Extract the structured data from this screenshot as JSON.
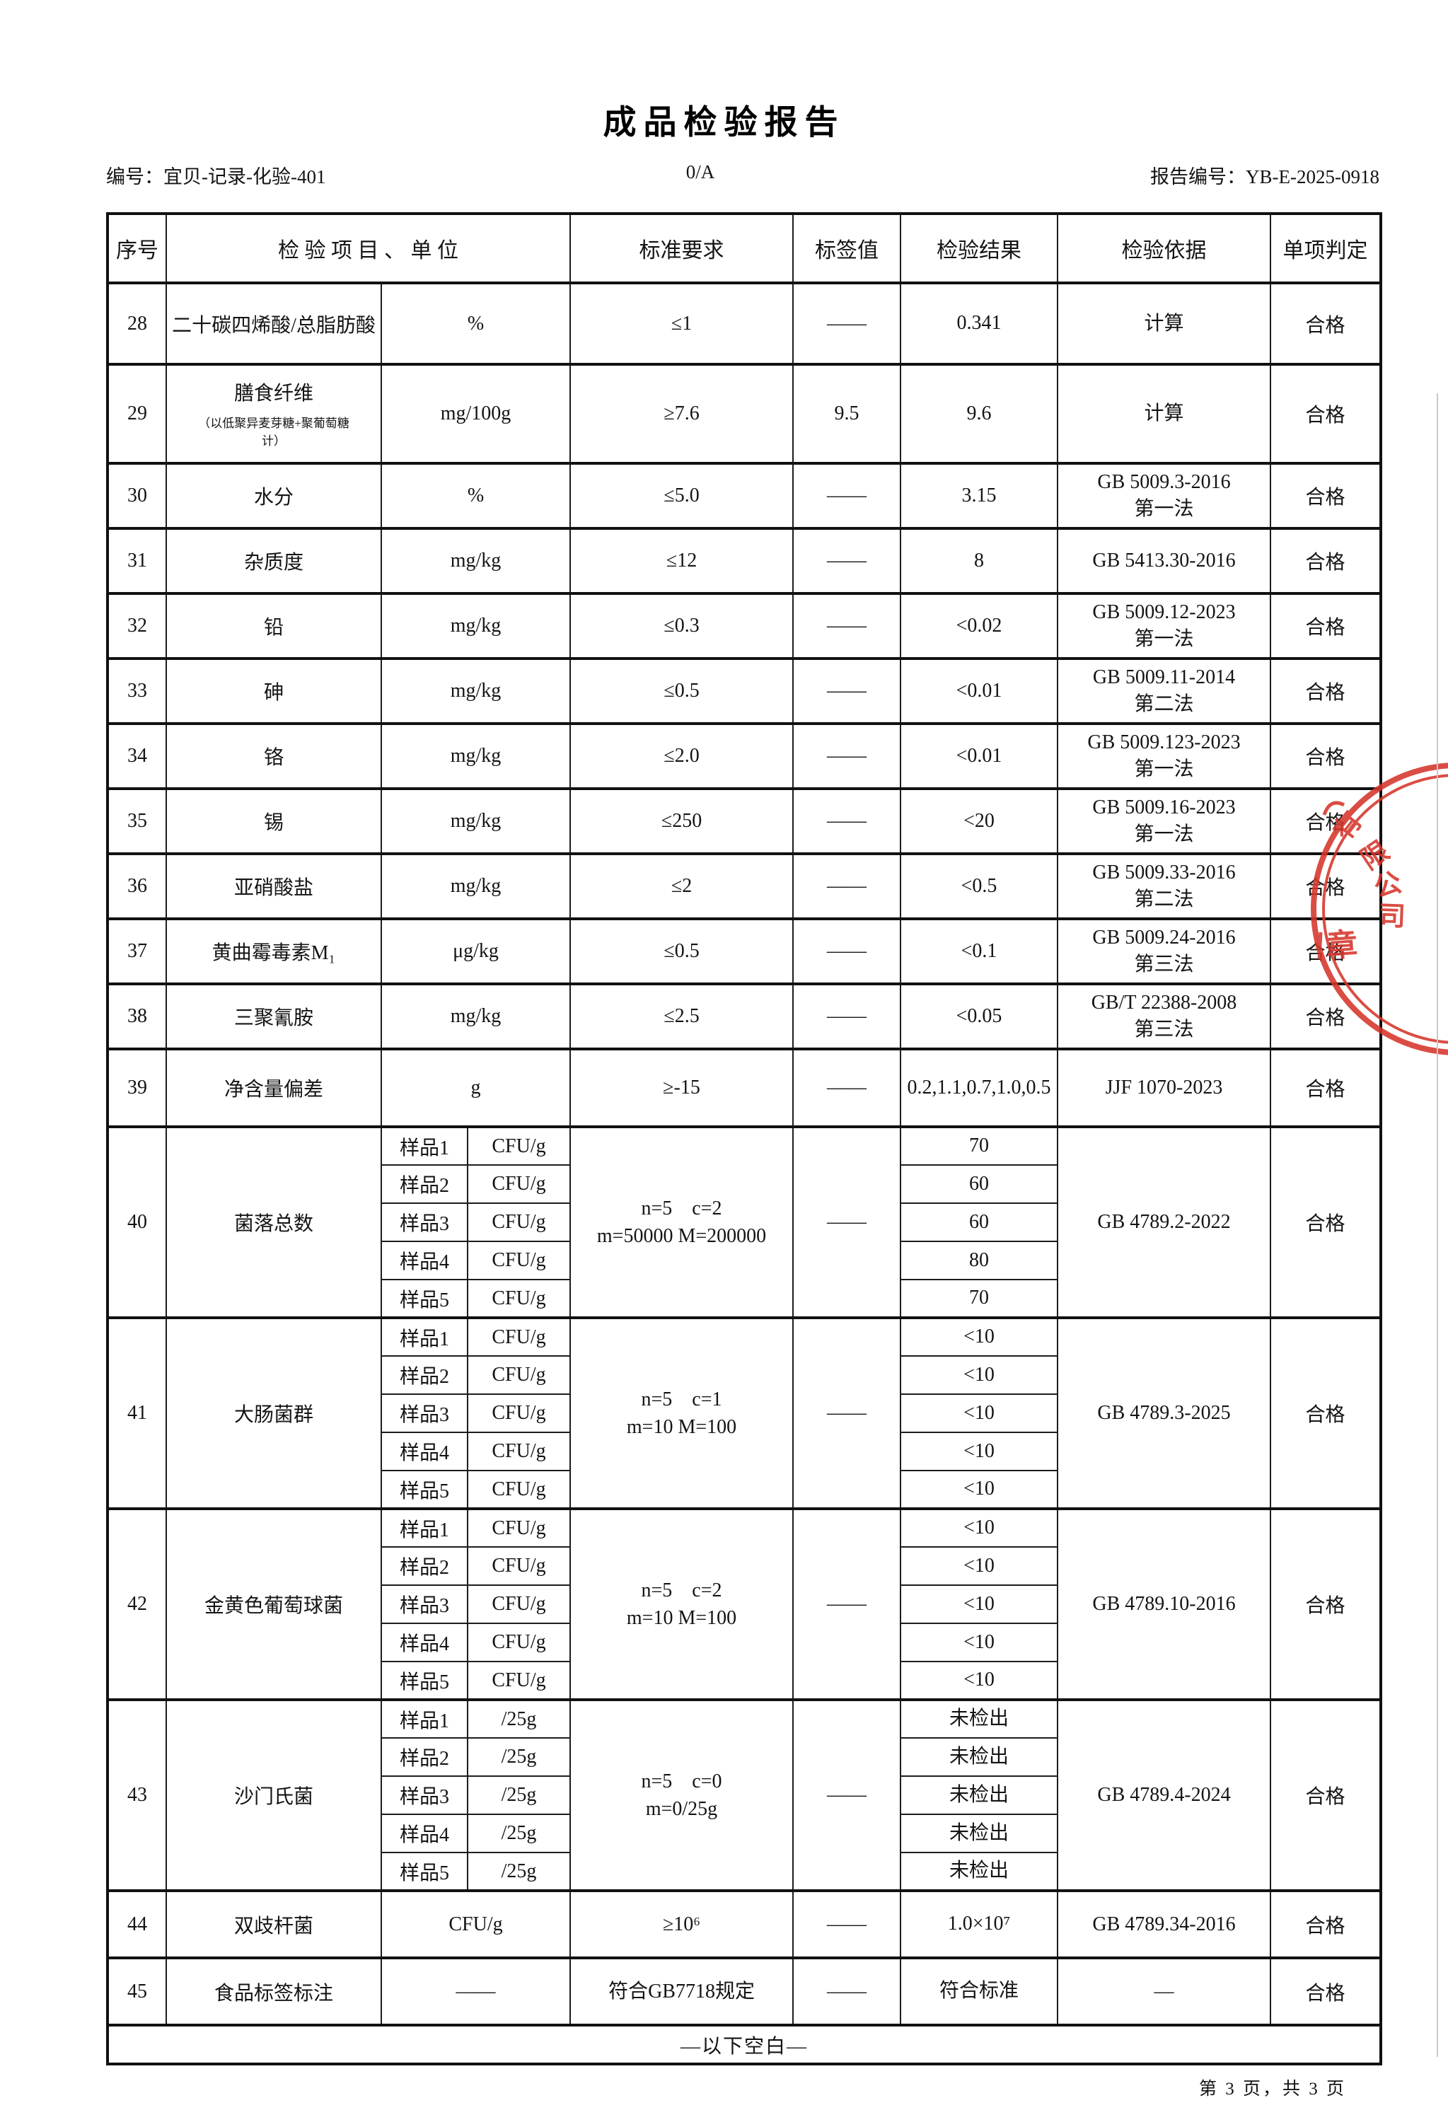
{
  "page": {
    "title": "成品检验报告",
    "doc_no": "编号：宜贝-记录-化验-401",
    "version": "0/A",
    "report_no": "报告编号：YB-E-2025-0918",
    "below_blank": "—以下空白—",
    "footer": "第 3 页，共 3 页"
  },
  "table": {
    "headers": [
      "序号",
      "检 验 项 目 、 单 位",
      "标准要求",
      "标签值",
      "检验结果",
      "检验依据",
      "单项判定"
    ],
    "rows": [
      {
        "no": "28",
        "item": "二十碳四烯酸/总脂肪酸",
        "unit": "%",
        "standard": "≤1",
        "label_value": "——",
        "result": "0.341",
        "basis": "计算",
        "verdict": "合格"
      },
      {
        "no": "29",
        "item": "膳食纤维",
        "note": "（以低聚异麦芽糖+聚葡萄糖计）",
        "unit": "mg/100g",
        "standard": "≥7.6",
        "label_value": "9.5",
        "result": "9.6",
        "basis": "计算",
        "verdict": "合格"
      },
      {
        "no": "30",
        "item": "水分",
        "unit": "%",
        "standard": "≤5.0",
        "label_value": "——",
        "result": "3.15",
        "basis": "GB 5009.3-2016\n第一法",
        "verdict": "合格"
      },
      {
        "no": "31",
        "item": "杂质度",
        "unit": "mg/kg",
        "standard": "≤12",
        "label_value": "——",
        "result": "8",
        "basis": "GB 5413.30-2016",
        "verdict": "合格"
      },
      {
        "no": "32",
        "item": "铅",
        "unit": "mg/kg",
        "standard": "≤0.3",
        "label_value": "——",
        "result": "<0.02",
        "basis": "GB 5009.12-2023\n第一法",
        "verdict": "合格"
      },
      {
        "no": "33",
        "item": "砷",
        "unit": "mg/kg",
        "standard": "≤0.5",
        "label_value": "——",
        "result": "<0.01",
        "basis": "GB 5009.11-2014\n第二法",
        "verdict": "合格"
      },
      {
        "no": "34",
        "item": "铬",
        "unit": "mg/kg",
        "standard": "≤2.0",
        "label_value": "——",
        "result": "<0.01",
        "basis": "GB 5009.123-2023\n第一法",
        "verdict": "合格"
      },
      {
        "no": "35",
        "item": "锡",
        "unit": "mg/kg",
        "standard": "≤250",
        "label_value": "——",
        "result": "<20",
        "basis": "GB 5009.16-2023\n第一法",
        "verdict": "合格"
      },
      {
        "no": "36",
        "item": "亚硝酸盐",
        "unit": "mg/kg",
        "standard": "≤2",
        "label_value": "——",
        "result": "<0.5",
        "basis": "GB 5009.33-2016\n第二法",
        "verdict": "合格"
      },
      {
        "no": "37",
        "item": "黄曲霉毒素M₁",
        "unit": "μg/kg",
        "standard": "≤0.5",
        "label_value": "——",
        "result": "<0.1",
        "basis": "GB 5009.24-2016\n第三法",
        "verdict": "合格"
      },
      {
        "no": "38",
        "item": "三聚氰胺",
        "unit": "mg/kg",
        "standard": "≤2.5",
        "label_value": "——",
        "result": "<0.05",
        "basis": "GB/T 22388-2008\n第三法",
        "verdict": "合格"
      },
      {
        "no": "39",
        "item": "净含量偏差",
        "unit": "g",
        "standard": "≥-15",
        "label_value": "——",
        "result": "0.2,1.1,0.7,1.0,0.5",
        "basis": "JJF 1070-2023",
        "verdict": "合格"
      },
      {
        "no": "40",
        "item": "菌落总数",
        "standard": "n=5　c=2\nm=50000 M=200000",
        "label_value": "——",
        "basis": "GB 4789.2-2022",
        "verdict": "合格",
        "samples": [
          {
            "label": "样品1",
            "unit": "CFU/g",
            "result": "70"
          },
          {
            "label": "样品2",
            "unit": "CFU/g",
            "result": "60"
          },
          {
            "label": "样品3",
            "unit": "CFU/g",
            "result": "60"
          },
          {
            "label": "样品4",
            "unit": "CFU/g",
            "result": "80"
          },
          {
            "label": "样品5",
            "unit": "CFU/g",
            "result": "70"
          }
        ]
      },
      {
        "no": "41",
        "item": "大肠菌群",
        "standard": "n=5　c=1\nm=10 M=100",
        "label_value": "——",
        "basis": "GB 4789.3-2025",
        "verdict": "合格",
        "samples": [
          {
            "label": "样品1",
            "unit": "CFU/g",
            "result": "<10"
          },
          {
            "label": "样品2",
            "unit": "CFU/g",
            "result": "<10"
          },
          {
            "label": "样品3",
            "unit": "CFU/g",
            "result": "<10"
          },
          {
            "label": "样品4",
            "unit": "CFU/g",
            "result": "<10"
          },
          {
            "label": "样品5",
            "unit": "CFU/g",
            "result": "<10"
          }
        ]
      },
      {
        "no": "42",
        "item": "金黄色葡萄球菌",
        "standard": "n=5　c=2\nm=10 M=100",
        "label_value": "——",
        "basis": "GB 4789.10-2016",
        "verdict": "合格",
        "samples": [
          {
            "label": "样品1",
            "unit": "CFU/g",
            "result": "<10"
          },
          {
            "label": "样品2",
            "unit": "CFU/g",
            "result": "<10"
          },
          {
            "label": "样品3",
            "unit": "CFU/g",
            "result": "<10"
          },
          {
            "label": "样品4",
            "unit": "CFU/g",
            "result": "<10"
          },
          {
            "label": "样品5",
            "unit": "CFU/g",
            "result": "<10"
          }
        ]
      },
      {
        "no": "43",
        "item": "沙门氏菌",
        "standard": "n=5　c=0\nm=0/25g",
        "label_value": "——",
        "basis": "GB 4789.4-2024",
        "verdict": "合格",
        "samples": [
          {
            "label": "样品1",
            "unit": "/25g",
            "result": "未检出"
          },
          {
            "label": "样品2",
            "unit": "/25g",
            "result": "未检出"
          },
          {
            "label": "样品3",
            "unit": "/25g",
            "result": "未检出"
          },
          {
            "label": "样品4",
            "unit": "/25g",
            "result": "未检出"
          },
          {
            "label": "样品5",
            "unit": "/25g",
            "result": "未检出"
          }
        ]
      },
      {
        "no": "44",
        "item": "双歧杆菌",
        "unit": "CFU/g",
        "standard": "≥10⁶",
        "label_value": "——",
        "result": "1.0×10⁷",
        "basis": "GB 4789.34-2016",
        "verdict": "合格"
      },
      {
        "no": "45",
        "item": "食品标签标注",
        "unit": "——",
        "standard": "符合GB7718规定",
        "label_value": "——",
        "result": "符合标准",
        "basis": "—",
        "verdict": "合格"
      }
    ]
  },
  "stamp": {
    "arc_text": "有限公司",
    "center_text": "章",
    "color": "#d5352b"
  }
}
